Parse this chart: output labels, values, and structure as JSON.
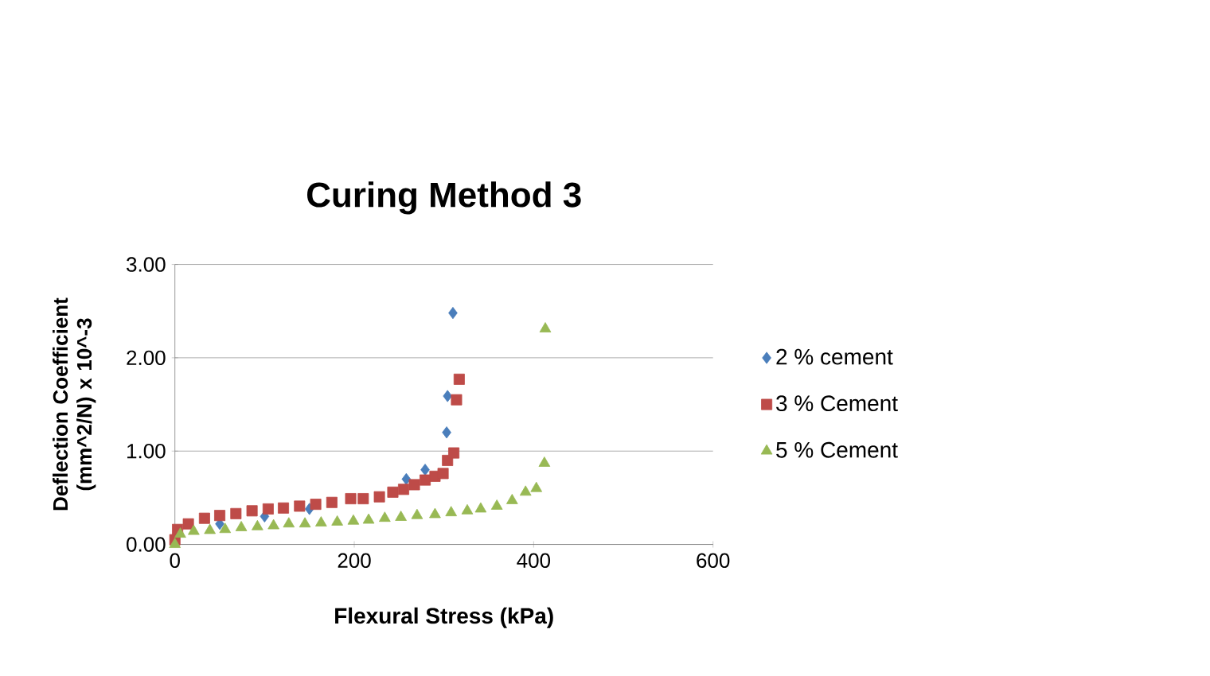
{
  "chart_data": {
    "type": "scatter",
    "title": "Curing Method 3",
    "xlabel": "Flexural Stress (kPa)",
    "ylabel": "Deflection Coefficient (mm^2/N) x 10^-3",
    "xlim": [
      0,
      600
    ],
    "ylim": [
      0,
      3
    ],
    "xticks": [
      0,
      200,
      400,
      600
    ],
    "yticks": [
      {
        "value": 0,
        "label": "0.00"
      },
      {
        "value": 1,
        "label": "1.00"
      },
      {
        "value": 2,
        "label": "2.00"
      },
      {
        "value": 3,
        "label": "3.00"
      }
    ],
    "grid": "y",
    "legend": "right",
    "series": [
      {
        "name": "2 % cement",
        "color": "#4a7ebb",
        "marker": "diamond",
        "x": [
          50,
          100,
          150,
          258,
          279,
          303,
          304,
          310
        ],
        "values": [
          0.22,
          0.3,
          0.38,
          0.7,
          0.8,
          1.2,
          1.59,
          2.48
        ]
      },
      {
        "name": "3 % Cement",
        "color": "#be4b48",
        "marker": "square",
        "x": [
          0,
          3,
          15,
          33,
          50,
          68,
          86,
          104,
          121,
          139,
          157,
          175,
          196,
          210,
          228,
          243,
          255,
          267,
          279,
          290,
          299,
          304,
          311,
          314,
          317
        ],
        "values": [
          0.05,
          0.16,
          0.22,
          0.28,
          0.31,
          0.33,
          0.36,
          0.38,
          0.39,
          0.41,
          0.43,
          0.45,
          0.49,
          0.49,
          0.51,
          0.56,
          0.59,
          0.64,
          0.69,
          0.73,
          0.76,
          0.9,
          0.98,
          1.55,
          1.77
        ]
      },
      {
        "name": "5 % Cement",
        "color": "#98b954",
        "marker": "triangle",
        "x": [
          0,
          6,
          21,
          39,
          56,
          74,
          92,
          110,
          127,
          145,
          163,
          181,
          199,
          216,
          234,
          252,
          270,
          290,
          308,
          326,
          341,
          359,
          376,
          391,
          403,
          412,
          413
        ],
        "values": [
          0,
          0.11,
          0.14,
          0.15,
          0.16,
          0.18,
          0.19,
          0.2,
          0.22,
          0.22,
          0.23,
          0.24,
          0.25,
          0.26,
          0.28,
          0.29,
          0.31,
          0.32,
          0.34,
          0.36,
          0.38,
          0.41,
          0.47,
          0.56,
          0.6,
          0.87,
          2.31
        ]
      }
    ]
  }
}
